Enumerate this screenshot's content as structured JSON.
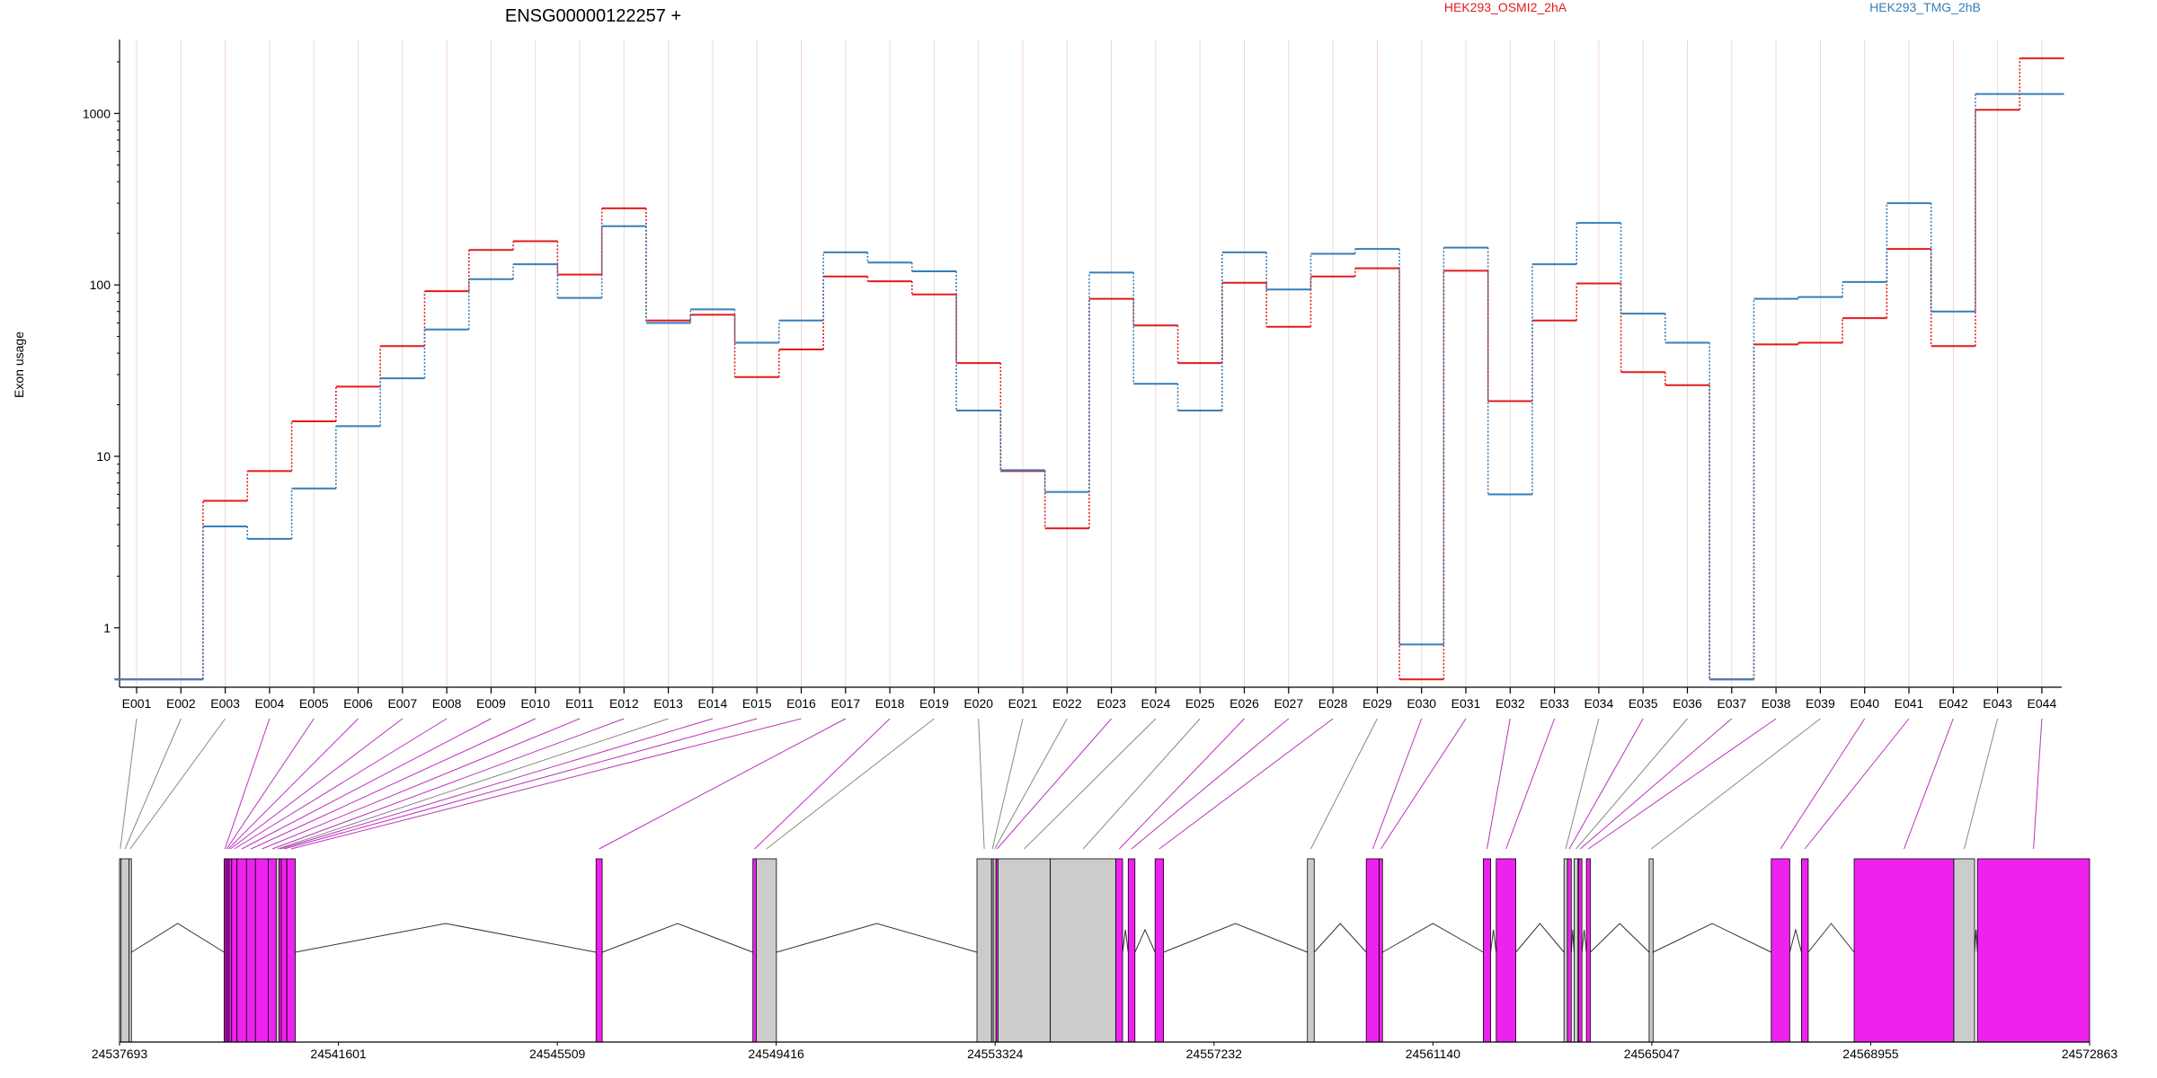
{
  "chart_data": [
    {
      "type": "line",
      "title": "ENSG00000122257 +",
      "ylabel": "Exon usage",
      "yscale": "log",
      "ylim": [
        0.45,
        2700
      ],
      "yticks": [
        1,
        10,
        100,
        1000
      ],
      "ytick_labels": [
        "1",
        "10",
        "100",
        "1000"
      ],
      "categories": [
        "E001",
        "E002",
        "E003",
        "E004",
        "E005",
        "E006",
        "E007",
        "E008",
        "E009",
        "E010",
        "E011",
        "E012",
        "E013",
        "E014",
        "E015",
        "E016",
        "E017",
        "E018",
        "E019",
        "E020",
        "E021",
        "E022",
        "E023",
        "E024",
        "E025",
        "E026",
        "E027",
        "E028",
        "E029",
        "E030",
        "E031",
        "E032",
        "E033",
        "E034",
        "E035",
        "E036",
        "E037",
        "E038",
        "E039",
        "E040",
        "E041",
        "E042",
        "E043",
        "E044"
      ],
      "legend_placement": "top",
      "series": [
        {
          "name": "HEK293_OSMI2_2hA",
          "color": "#e41a1c",
          "values": [
            0.5,
            0.5,
            5.5,
            8.2,
            16,
            25.5,
            44,
            92,
            160,
            180,
            115,
            280,
            62,
            67,
            29,
            42,
            112,
            105,
            88,
            35,
            8.2,
            3.8,
            83,
            58,
            35,
            103,
            57,
            112,
            125,
            0.5,
            121,
            21,
            62,
            102,
            31,
            26,
            0.5,
            45,
            46,
            64,
            162,
            44,
            1050,
            2100
          ]
        },
        {
          "name": "HEK293_TMG_2hB",
          "color": "#377eb8",
          "values": [
            0.5,
            0.5,
            3.9,
            3.3,
            6.5,
            15,
            28.5,
            55,
            108,
            132,
            84,
            220,
            60,
            72,
            46,
            62,
            155,
            135,
            120,
            18.5,
            8.3,
            6.2,
            118,
            26.5,
            18.5,
            155,
            94,
            152,
            162,
            0.8,
            165,
            6,
            132,
            230,
            68,
            46,
            0.5,
            83,
            85,
            104,
            300,
            70,
            1300,
            1300
          ]
        }
      ]
    },
    {
      "type": "gene-model",
      "xlim": [
        24537693,
        24572863
      ],
      "ticks": [
        24537693,
        24541601,
        24545509,
        24549416,
        24553324,
        24557232,
        24561140,
        24565047,
        24568955,
        24572863
      ],
      "tick_labels": [
        "24537693",
        "24541601",
        "24545509",
        "24549416",
        "24553324",
        "24557232",
        "24561140",
        "24565047",
        "24568955",
        "24572863"
      ],
      "colors": {
        "significant_exon": "#ee22ee",
        "exon": "#cccccc",
        "outline": "#000000"
      },
      "exons": [
        {
          "id": "E001",
          "start": 24537693,
          "end": 24537720,
          "significant": false
        },
        {
          "id": "E002",
          "start": 24537720,
          "end": 24537860,
          "significant": false
        },
        {
          "id": "E003",
          "start": 24537860,
          "end": 24537905,
          "significant": false
        },
        {
          "id": "E004",
          "start": 24539560,
          "end": 24539590,
          "significant": true
        },
        {
          "id": "E005",
          "start": 24539590,
          "end": 24539620,
          "significant": true
        },
        {
          "id": "E006",
          "start": 24539620,
          "end": 24539650,
          "significant": true
        },
        {
          "id": "E007",
          "start": 24539650,
          "end": 24539695,
          "significant": true
        },
        {
          "id": "E008",
          "start": 24539695,
          "end": 24539790,
          "significant": true
        },
        {
          "id": "E009",
          "start": 24539790,
          "end": 24539960,
          "significant": true
        },
        {
          "id": "E010",
          "start": 24539960,
          "end": 24540120,
          "significant": true
        },
        {
          "id": "E011",
          "start": 24540120,
          "end": 24540350,
          "significant": true
        },
        {
          "id": "E012",
          "start": 24540350,
          "end": 24540490,
          "significant": true
        },
        {
          "id": "E013",
          "start": 24540490,
          "end": 24540540,
          "significant": false
        },
        {
          "id": "E014",
          "start": 24540540,
          "end": 24540580,
          "significant": true
        },
        {
          "id": "E015",
          "start": 24540580,
          "end": 24540680,
          "significant": true
        },
        {
          "id": "E016",
          "start": 24540680,
          "end": 24540830,
          "significant": true
        },
        {
          "id": "E017",
          "start": 24546200,
          "end": 24546310,
          "significant": true
        },
        {
          "id": "E018",
          "start": 24549000,
          "end": 24549060,
          "significant": true
        },
        {
          "id": "E019",
          "start": 24549060,
          "end": 24549420,
          "significant": false
        },
        {
          "id": "E020",
          "start": 24553000,
          "end": 24553260,
          "significant": false
        },
        {
          "id": "E021",
          "start": 24553260,
          "end": 24553290,
          "significant": false
        },
        {
          "id": "E022",
          "start": 24553290,
          "end": 24553340,
          "significant": false
        },
        {
          "id": "E023",
          "start": 24553340,
          "end": 24553375,
          "significant": true
        },
        {
          "id": "E024",
          "start": 24553375,
          "end": 24554310,
          "significant": false
        },
        {
          "id": "E025",
          "start": 24554310,
          "end": 24555480,
          "significant": false
        },
        {
          "id": "E026",
          "start": 24555480,
          "end": 24555600,
          "significant": true
        },
        {
          "id": "E027",
          "start": 24555700,
          "end": 24555820,
          "significant": true
        },
        {
          "id": "E028",
          "start": 24556180,
          "end": 24556330,
          "significant": true
        },
        {
          "id": "E029",
          "start": 24558900,
          "end": 24559020,
          "significant": false
        },
        {
          "id": "E030",
          "start": 24559950,
          "end": 24560180,
          "significant": true
        },
        {
          "id": "E031",
          "start": 24560180,
          "end": 24560240,
          "significant": true
        },
        {
          "id": "E032",
          "start": 24562040,
          "end": 24562170,
          "significant": true
        },
        {
          "id": "E033",
          "start": 24562270,
          "end": 24562620,
          "significant": true
        },
        {
          "id": "E034",
          "start": 24563480,
          "end": 24563540,
          "significant": false
        },
        {
          "id": "E035",
          "start": 24563540,
          "end": 24563610,
          "significant": true
        },
        {
          "id": "E036",
          "start": 24563660,
          "end": 24563730,
          "significant": false
        },
        {
          "id": "E037",
          "start": 24563740,
          "end": 24563800,
          "significant": true
        },
        {
          "id": "E038",
          "start": 24563880,
          "end": 24563950,
          "significant": true
        },
        {
          "id": "E039",
          "start": 24565000,
          "end": 24565070,
          "significant": false
        },
        {
          "id": "E040",
          "start": 24567180,
          "end": 24567510,
          "significant": true
        },
        {
          "id": "E041",
          "start": 24567720,
          "end": 24567840,
          "significant": true
        },
        {
          "id": "E042",
          "start": 24568660,
          "end": 24570440,
          "significant": true
        },
        {
          "id": "E043",
          "start": 24570440,
          "end": 24570810,
          "significant": false
        },
        {
          "id": "E044",
          "start": 24570860,
          "end": 24572863,
          "significant": true
        }
      ]
    }
  ]
}
